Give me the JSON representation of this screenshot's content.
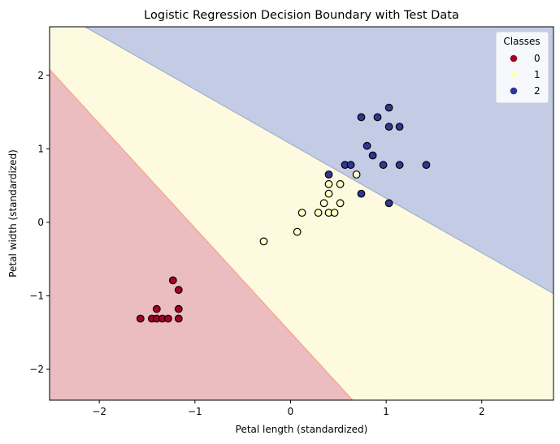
{
  "chart_data": {
    "type": "scatter",
    "title": "Logistic Regression Decision Boundary with Test Data",
    "xlabel": "Petal length (standardized)",
    "ylabel": "Petal width (standardized)",
    "xlim": [
      -2.52,
      2.75
    ],
    "ylim": [
      -2.42,
      2.66
    ],
    "xticks": [
      -2,
      -1,
      0,
      1,
      2
    ],
    "yticks": [
      -2,
      -1,
      0,
      1,
      2
    ],
    "tick_labels_x": [
      "−2",
      "−1",
      "0",
      "1",
      "2"
    ],
    "tick_labels_y": [
      "−2",
      "−1",
      "0",
      "1",
      "2"
    ],
    "grid": false,
    "legend": {
      "title": "Classes",
      "placement": "top-right",
      "entries": [
        "0",
        "1",
        "2"
      ]
    },
    "colors": {
      "class_0": "#a50026",
      "class_1": "#ffffbf",
      "class_2": "#313695",
      "region_0": "#ebbcc0",
      "region_1": "#fefae0",
      "region_2": "#c4cce5",
      "boundary_01": "#f4a582",
      "boundary_12": "#9fb0d0"
    },
    "regions": [
      {
        "class": "0",
        "polygon": [
          [
            -2.52,
            2.08
          ],
          [
            -2.52,
            -2.42
          ],
          [
            0.65,
            -2.42
          ]
        ]
      },
      {
        "class": "1",
        "polygon": [
          [
            -2.52,
            2.08
          ],
          [
            0.65,
            -2.42
          ],
          [
            2.75,
            -2.42
          ],
          [
            2.75,
            -0.97
          ],
          [
            -2.15,
            2.66
          ],
          [
            -2.52,
            2.66
          ]
        ]
      },
      {
        "class": "2",
        "polygon": [
          [
            -2.15,
            2.66
          ],
          [
            2.75,
            -0.97
          ],
          [
            2.75,
            2.66
          ]
        ]
      }
    ],
    "series": [
      {
        "name": "0",
        "points": [
          [
            -1.57,
            -1.31
          ],
          [
            -1.45,
            -1.31
          ],
          [
            -1.4,
            -1.31
          ],
          [
            -1.34,
            -1.31
          ],
          [
            -1.28,
            -1.31
          ],
          [
            -1.17,
            -1.31
          ],
          [
            -1.4,
            -1.18
          ],
          [
            -1.17,
            -1.18
          ],
          [
            -1.17,
            -0.92
          ],
          [
            -1.23,
            -0.79
          ]
        ]
      },
      {
        "name": "1",
        "points": [
          [
            -0.28,
            -0.26
          ],
          [
            0.07,
            -0.13
          ],
          [
            0.12,
            0.13
          ],
          [
            0.29,
            0.13
          ],
          [
            0.4,
            0.13
          ],
          [
            0.46,
            0.13
          ],
          [
            0.35,
            0.26
          ],
          [
            0.52,
            0.26
          ],
          [
            0.4,
            0.39
          ],
          [
            0.4,
            0.52
          ],
          [
            0.52,
            0.52
          ],
          [
            0.69,
            0.65
          ]
        ]
      },
      {
        "name": "2",
        "points": [
          [
            0.4,
            0.65
          ],
          [
            0.57,
            0.78
          ],
          [
            0.63,
            0.78
          ],
          [
            0.97,
            0.78
          ],
          [
            1.14,
            0.78
          ],
          [
            1.42,
            0.78
          ],
          [
            0.86,
            0.91
          ],
          [
            0.8,
            1.04
          ],
          [
            1.03,
            1.3
          ],
          [
            1.14,
            1.3
          ],
          [
            0.74,
            1.43
          ],
          [
            0.91,
            1.43
          ],
          [
            1.03,
            1.56
          ],
          [
            0.74,
            0.39
          ],
          [
            1.03,
            0.26
          ]
        ]
      }
    ]
  }
}
